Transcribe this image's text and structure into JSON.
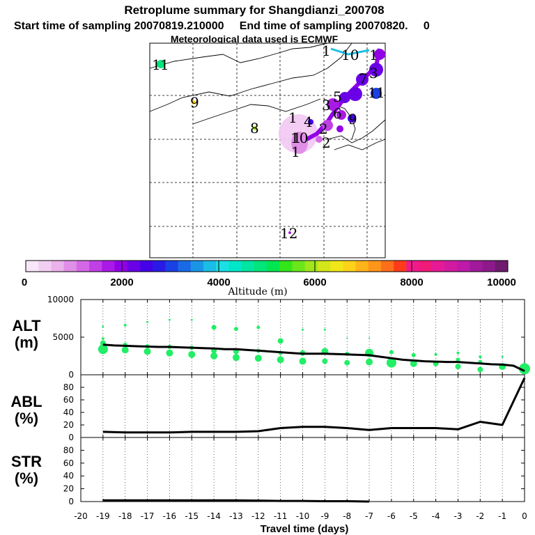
{
  "titles": {
    "line1": "Retroplume summary for Shangdianzi_200708",
    "line2": "Start time of sampling 20070819.210000     End time of sampling 20070820.     0",
    "line3": "Meteorological data used is ECMWF"
  },
  "map": {
    "plume_labels": [
      "1",
      "1",
      "9",
      "8",
      "1",
      "1",
      "1",
      "1",
      "12",
      "10",
      "3",
      "4",
      "5",
      "6",
      "7",
      "9",
      "2",
      "2",
      "3",
      "1",
      "1",
      "10",
      "1"
    ],
    "colors": {
      "plume_center": "#e8b0f0",
      "track": "#9900cc",
      "track_dark": "#3300cc",
      "track_blue": "#0033cc",
      "track_cyan": "#00bbdd"
    }
  },
  "colorbar": {
    "colors": [
      "#f7e6f7",
      "#f2cef2",
      "#ebb2eb",
      "#e08fe6",
      "#d468e6",
      "#c040e6",
      "#aa1ae6",
      "#9100e6",
      "#6a00e6",
      "#4400e6",
      "#2a1ae6",
      "#1a40e6",
      "#1a6ae6",
      "#1a95e6",
      "#1abde6",
      "#1ae0e6",
      "#00e6c8",
      "#00e6a0",
      "#00e67a",
      "#00e650",
      "#33e61a",
      "#6ae61a",
      "#a0e61a",
      "#d2e61a",
      "#f0e61a",
      "#ffd21a",
      "#ffb41a",
      "#ff961a",
      "#ff6e1a",
      "#ff3c1a",
      "#f01a8c",
      "#f01a78",
      "#e61a96",
      "#d21aa0",
      "#be1aaa",
      "#a01a9b",
      "#8c1a8c",
      "#6e1a6e"
    ],
    "tick_labels": [
      "0",
      "2000",
      "4000",
      "6000",
      "8000",
      "10000"
    ],
    "label": "Altitude (m)"
  },
  "chart_data": [
    {
      "type": "line",
      "panel": "ALT",
      "ylabel": "ALT (m)",
      "ylabel_line1": "ALT",
      "ylabel_line2": "(m)",
      "xlim": [
        -20,
        0
      ],
      "ylim": [
        0,
        10000
      ],
      "yticks": [
        "0",
        "5000",
        "10000"
      ],
      "ytick_values": [
        0,
        5000,
        10000
      ],
      "x": [
        0,
        -0.5,
        -1,
        -1.5,
        -2,
        -2.5,
        -3,
        -3.5,
        -4,
        -4.5,
        -5,
        -5.5,
        -6,
        -6.5,
        -7,
        -7.5,
        -8,
        -8.5,
        -9,
        -9.5,
        -10,
        -10.5,
        -11,
        -11.5,
        -12,
        -12.5,
        -13,
        -13.5,
        -14,
        -14.5,
        -15,
        -15.5,
        -16,
        -16.5,
        -17,
        -17.5,
        -18,
        -18.5,
        -19
      ],
      "y": [
        500,
        1200,
        1350,
        1400,
        1500,
        1600,
        1700,
        1700,
        1750,
        1800,
        1900,
        2000,
        2200,
        2400,
        2600,
        2650,
        2700,
        2750,
        2800,
        2800,
        2800,
        2900,
        3000,
        3100,
        3200,
        3300,
        3400,
        3400,
        3500,
        3550,
        3600,
        3650,
        3700,
        3700,
        3750,
        3800,
        3850,
        3900,
        4000
      ],
      "scatter_color": "#22ee66",
      "scatter": [
        [
          -19,
          3400,
          7
        ],
        [
          -19,
          4200,
          4
        ],
        [
          -19,
          4800,
          2
        ],
        [
          -19,
          6400,
          1.5
        ],
        [
          -18,
          3300,
          5
        ],
        [
          -18,
          4000,
          3
        ],
        [
          -18,
          6600,
          2
        ],
        [
          -17,
          3100,
          5
        ],
        [
          -17,
          3800,
          3
        ],
        [
          -17,
          7000,
          1.5
        ],
        [
          -16,
          2900,
          5
        ],
        [
          -16,
          3700,
          3
        ],
        [
          -16,
          7300,
          1.5
        ],
        [
          -15,
          2700,
          5
        ],
        [
          -15,
          3600,
          3
        ],
        [
          -15,
          7300,
          1.5
        ],
        [
          -14,
          2500,
          5
        ],
        [
          -14,
          3200,
          4
        ],
        [
          -14,
          6300,
          3.5
        ],
        [
          -13,
          2300,
          5
        ],
        [
          -13,
          3100,
          4
        ],
        [
          -13,
          6100,
          3
        ],
        [
          -12,
          2200,
          5
        ],
        [
          -12,
          3200,
          3
        ],
        [
          -12,
          6300,
          2.5
        ],
        [
          -11,
          2000,
          5
        ],
        [
          -11,
          2900,
          3
        ],
        [
          -11,
          4500,
          4
        ],
        [
          -10,
          1800,
          5
        ],
        [
          -10,
          2900,
          4
        ],
        [
          -10,
          6000,
          1.5
        ],
        [
          -9,
          1800,
          4
        ],
        [
          -9,
          3100,
          5
        ],
        [
          -9,
          6000,
          1.5
        ],
        [
          -8,
          1600,
          4
        ],
        [
          -8,
          2800,
          3
        ],
        [
          -8,
          4900,
          1
        ],
        [
          -7,
          1700,
          5
        ],
        [
          -7,
          2900,
          6
        ],
        [
          -7,
          4900,
          1
        ],
        [
          -6,
          1600,
          7
        ],
        [
          -6,
          3000,
          3
        ],
        [
          -5,
          1500,
          5
        ],
        [
          -5,
          2600,
          3
        ],
        [
          -4,
          1500,
          4
        ],
        [
          -4,
          2700,
          2
        ],
        [
          -3,
          1100,
          4
        ],
        [
          -3,
          2000,
          3
        ],
        [
          -3,
          2900,
          2
        ],
        [
          -2,
          700,
          4
        ],
        [
          -2,
          1700,
          3
        ],
        [
          -2,
          2400,
          2
        ],
        [
          -1,
          1100,
          5
        ],
        [
          -1,
          2400,
          1.5
        ],
        [
          0,
          800,
          8
        ]
      ]
    },
    {
      "type": "line",
      "panel": "ABL",
      "ylabel": "ABL (%)",
      "ylabel_line1": "ABL",
      "ylabel_line2": "(%)",
      "xlim": [
        -20,
        0
      ],
      "ylim": [
        0,
        100
      ],
      "yticks": [
        "0",
        "20",
        "40",
        "60",
        "80"
      ],
      "ytick_values": [
        0,
        20,
        40,
        60,
        80
      ],
      "x": [
        0,
        -1,
        -2,
        -3,
        -4,
        -5,
        -6,
        -7,
        -8,
        -9,
        -10,
        -11,
        -12,
        -13,
        -14,
        -15,
        -16,
        -17,
        -18,
        -19
      ],
      "y": [
        95,
        20,
        25,
        13,
        15,
        15,
        15,
        12,
        15,
        17,
        17,
        15,
        10,
        9,
        9,
        9,
        8,
        8,
        8,
        9
      ]
    },
    {
      "type": "line",
      "panel": "STR",
      "ylabel": "STR (%)",
      "ylabel_line1": "STR",
      "ylabel_line2": "(%)",
      "xlim": [
        -20,
        0
      ],
      "ylim": [
        0,
        100
      ],
      "yticks": [
        "0",
        "20",
        "40",
        "60",
        "80"
      ],
      "ytick_values": [
        0,
        20,
        40,
        60,
        80
      ],
      "x": [
        -19,
        -18,
        -17,
        -16,
        -15,
        -14,
        -13,
        -12,
        -11,
        -10,
        -9,
        -8,
        -7
      ],
      "y": [
        2,
        2,
        2,
        2,
        2,
        2,
        2,
        1.5,
        1,
        1,
        0.5,
        0.5,
        0
      ]
    }
  ],
  "xaxis": {
    "xlabel": "Travel time (days)",
    "ticks": [
      "-20",
      "-19",
      "-18",
      "-17",
      "-16",
      "-15",
      "-14",
      "-13",
      "-12",
      "-11",
      "-10",
      "-9",
      "-8",
      "-7",
      "-6",
      "-5",
      "-4",
      "-3",
      "-2",
      "-1",
      "0"
    ],
    "tick_values": [
      -20,
      -19,
      -18,
      -17,
      -16,
      -15,
      -14,
      -13,
      -12,
      -11,
      -10,
      -9,
      -8,
      -7,
      -6,
      -5,
      -4,
      -3,
      -2,
      -1,
      0
    ]
  }
}
